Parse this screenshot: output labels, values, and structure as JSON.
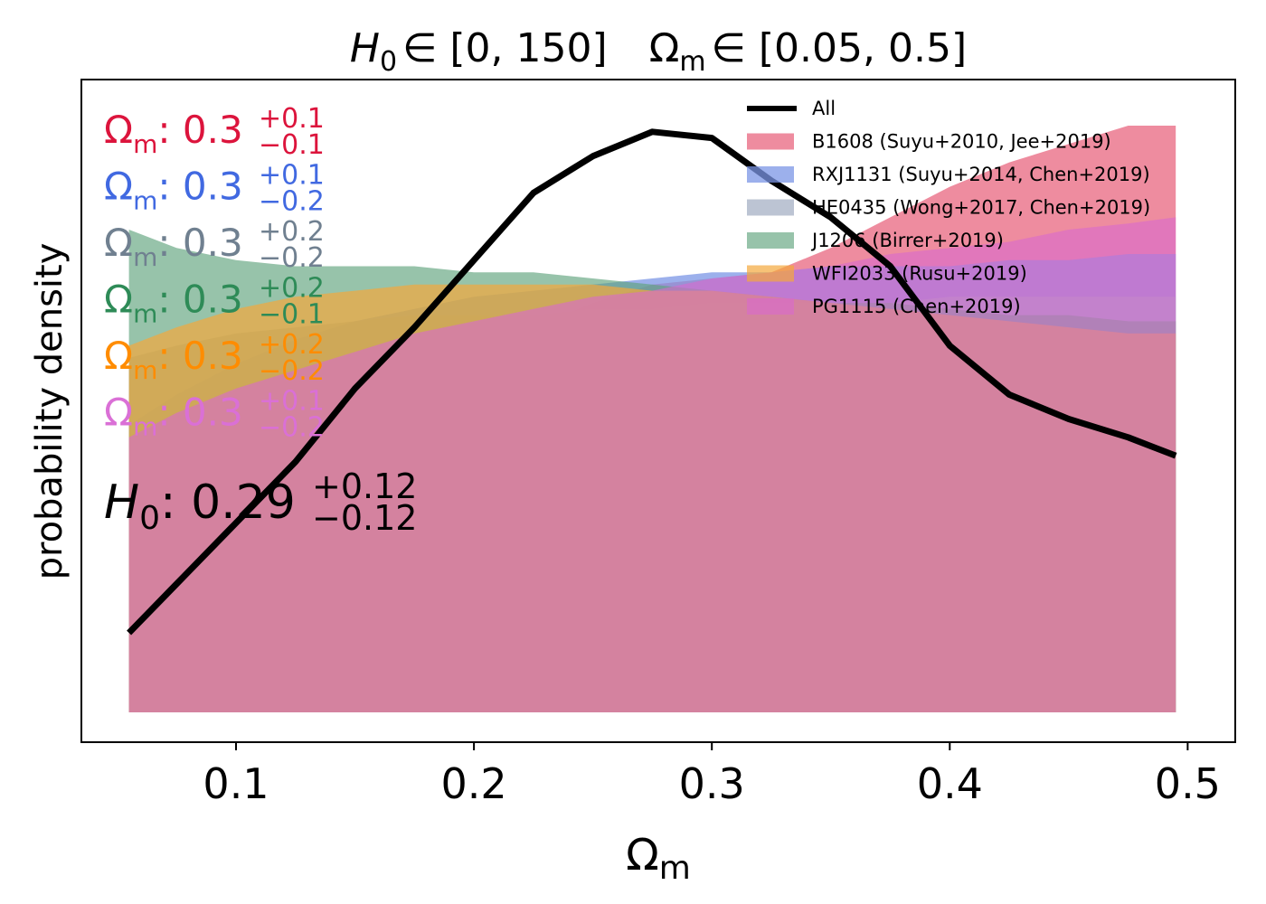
{
  "chart_data": {
    "type": "area",
    "title": {
      "h0_symbol": "H",
      "h0_sub": "0",
      "h0_range": "∈ [0, 150]",
      "om_symbol": "Ω",
      "om_sub": "m",
      "om_range": "∈ [0.05, 0.5]"
    },
    "xlabel": {
      "symbol": "Ω",
      "sub": "m"
    },
    "ylabel": "probability density",
    "xlim": [
      0.035,
      0.52
    ],
    "ylim": [
      0,
      1
    ],
    "grid": false,
    "legend_position": "top-right",
    "xticks": [
      {
        "value": 0.1,
        "label": "0.1"
      },
      {
        "value": 0.2,
        "label": "0.2"
      },
      {
        "value": 0.3,
        "label": "0.3"
      },
      {
        "value": 0.4,
        "label": "0.4"
      },
      {
        "value": 0.5,
        "label": "0.5"
      }
    ],
    "x": [
      0.055,
      0.075,
      0.1,
      0.125,
      0.15,
      0.175,
      0.2,
      0.225,
      0.25,
      0.275,
      0.3,
      0.325,
      0.35,
      0.375,
      0.4,
      0.425,
      0.45,
      0.475,
      0.495
    ],
    "series": [
      {
        "name": "All",
        "kind": "line",
        "color": "#000000",
        "values": [
          0.13,
          0.21,
          0.31,
          0.41,
          0.53,
          0.63,
          0.74,
          0.85,
          0.91,
          0.95,
          0.94,
          0.87,
          0.81,
          0.73,
          0.6,
          0.52,
          0.48,
          0.45,
          0.42
        ]
      },
      {
        "name": "B1608 (Suyu+2010, Jee+2019)",
        "kind": "fill",
        "color": "#e8667f",
        "opacity": 0.75,
        "values": [
          0.18,
          0.26,
          0.33,
          0.39,
          0.46,
          0.52,
          0.57,
          0.63,
          0.67,
          0.7,
          0.71,
          0.72,
          0.76,
          0.81,
          0.86,
          0.9,
          0.93,
          0.96,
          0.96
        ]
      },
      {
        "name": "RXJ1131 (Suyu+2014, Chen+2019)",
        "kind": "fill",
        "color": "#7b96e6",
        "opacity": 0.75,
        "values": [
          0.47,
          0.52,
          0.57,
          0.61,
          0.64,
          0.66,
          0.68,
          0.69,
          0.7,
          0.71,
          0.72,
          0.72,
          0.73,
          0.73,
          0.73,
          0.74,
          0.74,
          0.75,
          0.75
        ]
      },
      {
        "name": "HE0435 (Wong+2017, Chen+2019)",
        "kind": "fill",
        "color": "#a5b0c4",
        "opacity": 0.75,
        "values": [
          0.58,
          0.6,
          0.62,
          0.63,
          0.64,
          0.65,
          0.65,
          0.65,
          0.66,
          0.66,
          0.67,
          0.67,
          0.67,
          0.67,
          0.68,
          0.68,
          0.68,
          0.68,
          0.68
        ]
      },
      {
        "name": "J1206 (Birrer+2019)",
        "kind": "fill",
        "color": "#5fa37c",
        "opacity": 0.65,
        "values": [
          0.79,
          0.76,
          0.74,
          0.73,
          0.73,
          0.73,
          0.72,
          0.72,
          0.71,
          0.7,
          0.69,
          0.68,
          0.67,
          0.67,
          0.66,
          0.65,
          0.65,
          0.64,
          0.64
        ]
      },
      {
        "name": "WFI2033 (Rusu+2019)",
        "kind": "fill",
        "color": "#f4a83c",
        "opacity": 0.7,
        "values": [
          0.6,
          0.63,
          0.66,
          0.68,
          0.69,
          0.7,
          0.7,
          0.7,
          0.7,
          0.69,
          0.69,
          0.68,
          0.67,
          0.66,
          0.65,
          0.64,
          0.63,
          0.62,
          0.62
        ]
      },
      {
        "name": "PG1115 (Chen+2019)",
        "kind": "fill",
        "color": "#d869cf",
        "opacity": 0.6,
        "values": [
          0.45,
          0.49,
          0.53,
          0.56,
          0.59,
          0.62,
          0.64,
          0.66,
          0.68,
          0.69,
          0.71,
          0.72,
          0.73,
          0.75,
          0.76,
          0.77,
          0.79,
          0.8,
          0.81
        ]
      }
    ],
    "annotations": [
      {
        "color": "#dc143c",
        "symbol": "Ω",
        "sub": "m",
        "value": ": 0.3",
        "plus": "+0.1",
        "minus": "−0.1"
      },
      {
        "color": "#4169e1",
        "symbol": "Ω",
        "sub": "m",
        "value": ": 0.3",
        "plus": "+0.1",
        "minus": "−0.2"
      },
      {
        "color": "#708090",
        "symbol": "Ω",
        "sub": "m",
        "value": ": 0.3",
        "plus": "+0.2",
        "minus": "−0.2"
      },
      {
        "color": "#2e8b57",
        "symbol": "Ω",
        "sub": "m",
        "value": ": 0.3",
        "plus": "+0.2",
        "minus": "−0.1"
      },
      {
        "color": "#ff8c00",
        "symbol": "Ω",
        "sub": "m",
        "value": ": 0.3",
        "plus": "+0.2",
        "minus": "−0.2"
      },
      {
        "color": "#da70d6",
        "symbol": "Ω",
        "sub": "m",
        "value": ": 0.3",
        "plus": "+0.1",
        "minus": "−0.2"
      }
    ],
    "combined_annotation": {
      "symbol": "H",
      "sub": "0",
      "value": ": 0.29",
      "plus": "+0.12",
      "minus": "−0.12"
    }
  }
}
